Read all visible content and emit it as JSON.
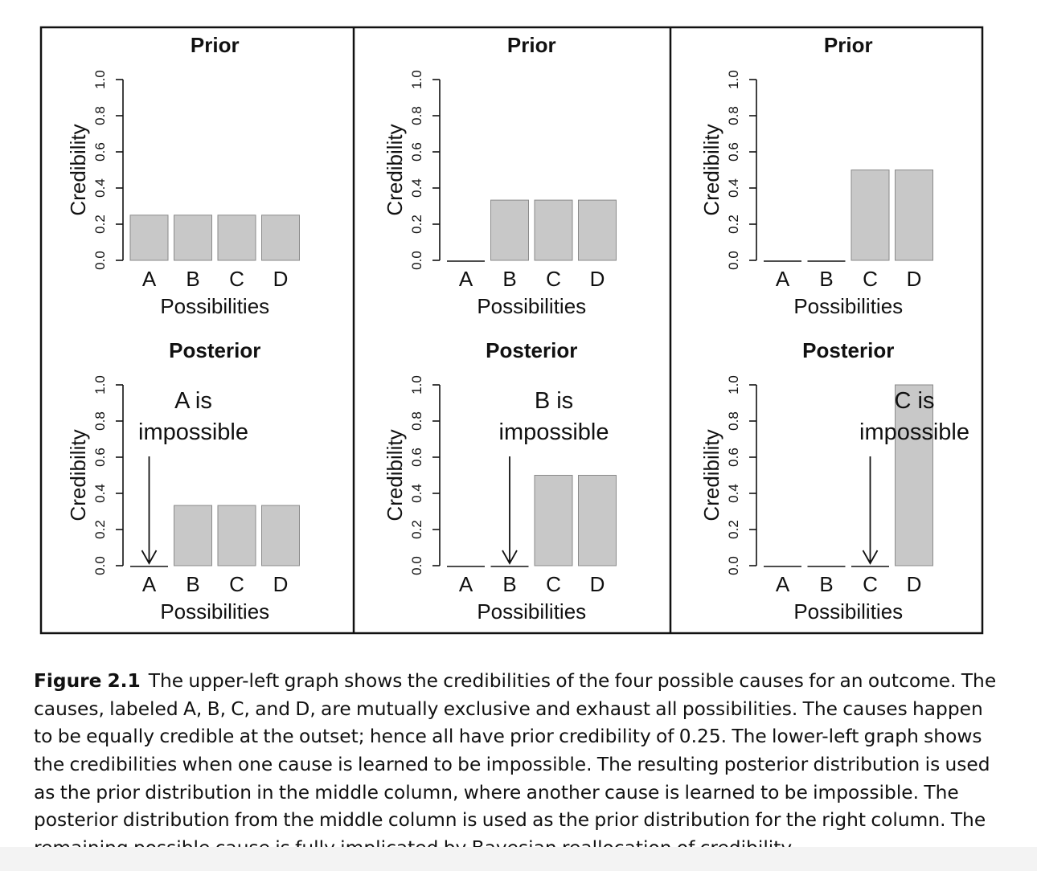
{
  "figure": {
    "caption_label": "Figure 2.1",
    "caption_text": "The upper-left graph shows the credibilities of the four possible causes for an outcome. The causes, labeled A, B, C, and D, are mutually exclusive and exhaust all possibilities. The causes happen to be equally credible at the outset; hence all have prior credibility of 0.25. The lower-left graph shows the credibilities when one cause is learned to be impossible. The resulting posterior distribution is used as the prior distribution in the middle column, where another cause is learned to be impossible. The posterior distribution from the middle column is used as the prior distribution for the right column. The remaining possible cause is fully implicated by Bayesian reallocation of credibility."
  },
  "colors": {
    "bar_fill": "#c8c8c8",
    "bar_edge": "#8a8a8a",
    "ink": "#111111",
    "background": "#ffffff"
  },
  "chart_data": [
    {
      "type": "bar",
      "panel": "left-top",
      "title": "Prior",
      "xlabel": "Possibilities",
      "ylabel": "Credibility",
      "categories": [
        "A",
        "B",
        "C",
        "D"
      ],
      "values": [
        0.25,
        0.25,
        0.25,
        0.25
      ],
      "ylim": [
        0,
        1
      ],
      "yticks": [
        "0.0",
        "0.2",
        "0.4",
        "0.6",
        "0.8",
        "1.0"
      ],
      "annotation": null
    },
    {
      "type": "bar",
      "panel": "left-bottom",
      "title": "Posterior",
      "xlabel": "Possibilities",
      "ylabel": "Credibility",
      "categories": [
        "A",
        "B",
        "C",
        "D"
      ],
      "values": [
        0,
        0.333,
        0.333,
        0.333
      ],
      "ylim": [
        0,
        1
      ],
      "yticks": [
        "0.0",
        "0.2",
        "0.4",
        "0.6",
        "0.8",
        "1.0"
      ],
      "annotation": {
        "lines": [
          "A is",
          "impossible"
        ],
        "target": "A"
      }
    },
    {
      "type": "bar",
      "panel": "middle-top",
      "title": "Prior",
      "xlabel": "Possibilities",
      "ylabel": "Credibility",
      "categories": [
        "A",
        "B",
        "C",
        "D"
      ],
      "values": [
        0,
        0.333,
        0.333,
        0.333
      ],
      "ylim": [
        0,
        1
      ],
      "yticks": [
        "0.0",
        "0.2",
        "0.4",
        "0.6",
        "0.8",
        "1.0"
      ],
      "annotation": null
    },
    {
      "type": "bar",
      "panel": "middle-bottom",
      "title": "Posterior",
      "xlabel": "Possibilities",
      "ylabel": "Credibility",
      "categories": [
        "A",
        "B",
        "C",
        "D"
      ],
      "values": [
        0,
        0,
        0.5,
        0.5
      ],
      "ylim": [
        0,
        1
      ],
      "yticks": [
        "0.0",
        "0.2",
        "0.4",
        "0.6",
        "0.8",
        "1.0"
      ],
      "annotation": {
        "lines": [
          "B is",
          "impossible"
        ],
        "target": "B"
      }
    },
    {
      "type": "bar",
      "panel": "right-top",
      "title": "Prior",
      "xlabel": "Possibilities",
      "ylabel": "Credibility",
      "categories": [
        "A",
        "B",
        "C",
        "D"
      ],
      "values": [
        0,
        0,
        0.5,
        0.5
      ],
      "ylim": [
        0,
        1
      ],
      "yticks": [
        "0.0",
        "0.2",
        "0.4",
        "0.6",
        "0.8",
        "1.0"
      ],
      "annotation": null
    },
    {
      "type": "bar",
      "panel": "right-bottom",
      "title": "Posterior",
      "xlabel": "Possibilities",
      "ylabel": "Credibility",
      "categories": [
        "A",
        "B",
        "C",
        "D"
      ],
      "values": [
        0,
        0,
        0,
        1.0
      ],
      "ylim": [
        0,
        1
      ],
      "yticks": [
        "0.0",
        "0.2",
        "0.4",
        "0.6",
        "0.8",
        "1.0"
      ],
      "annotation": {
        "lines": [
          "C is",
          "impossible"
        ],
        "target": "C"
      }
    }
  ]
}
